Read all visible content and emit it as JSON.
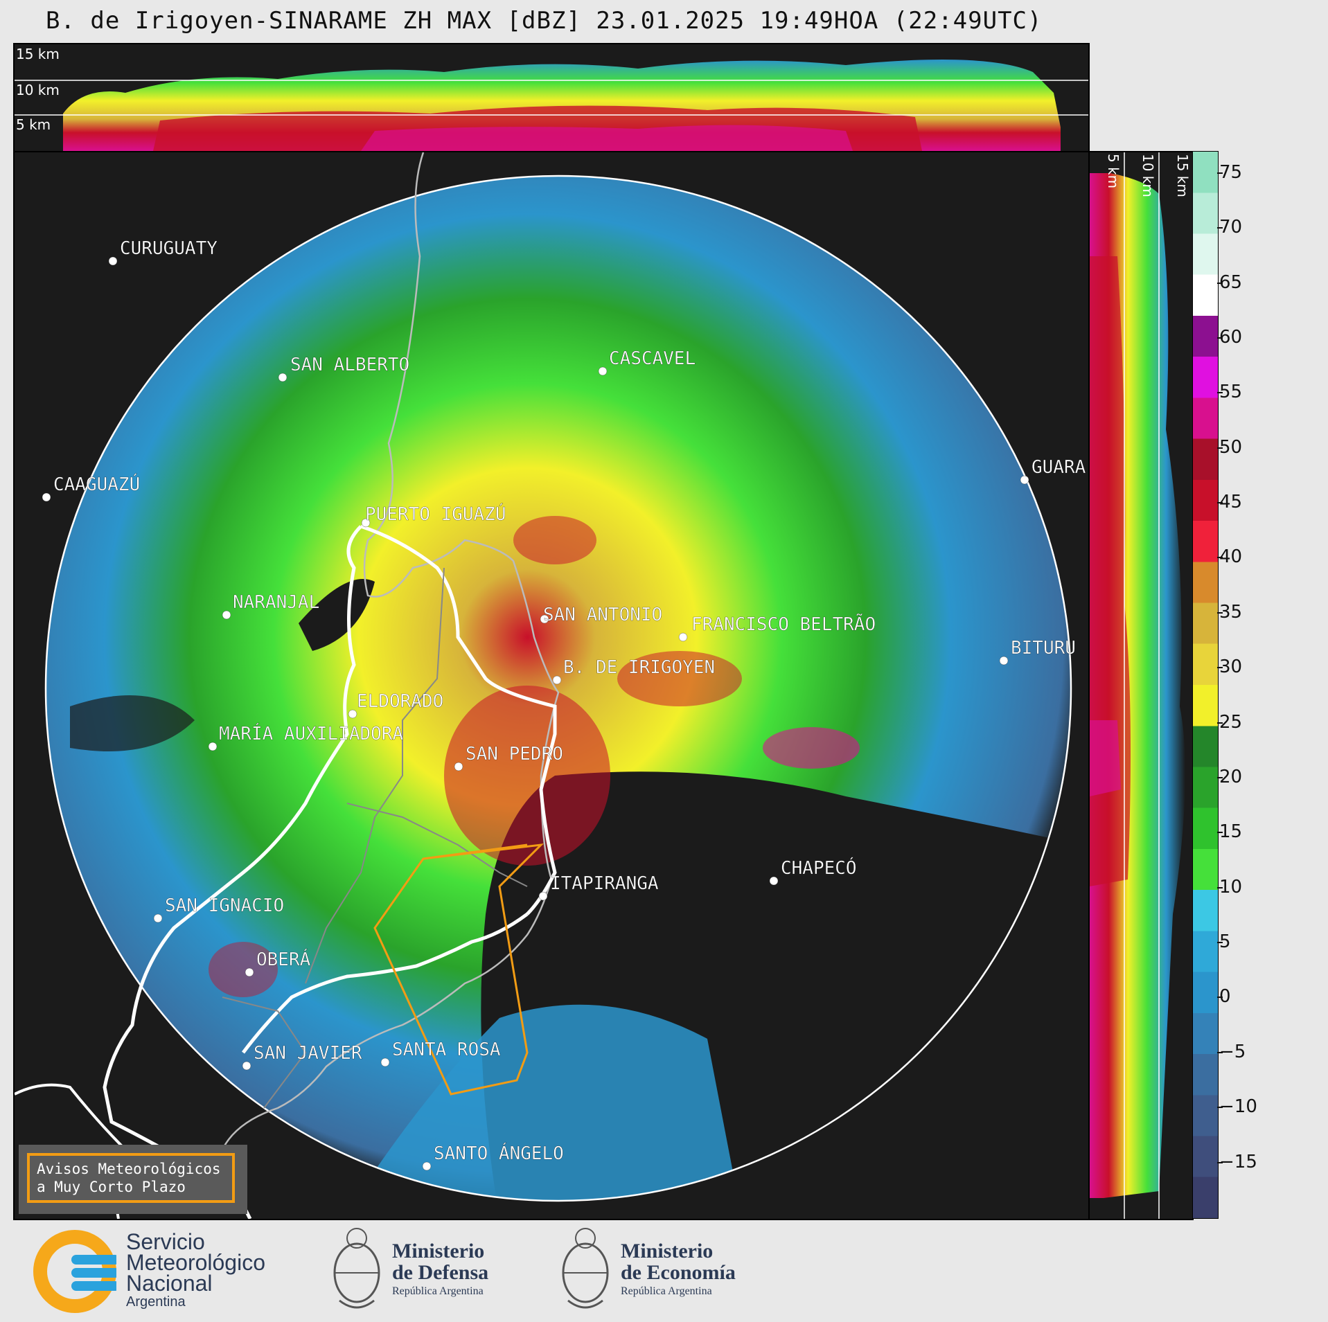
{
  "title": "B. de Irigoyen-SINARAME ZH MAX [dBZ] 23.01.2025 19:49HOA (22:49UTC)",
  "top_profile": {
    "height_labels": [
      "15 km",
      "10 km",
      "5 km"
    ]
  },
  "side_profile": {
    "height_labels": [
      "5 km",
      "10 km",
      "15 km"
    ]
  },
  "colorbar": {
    "unit": "dBZ",
    "ticks": [
      "75",
      "70",
      "65",
      "60",
      "55",
      "50",
      "45",
      "40",
      "35",
      "30",
      "25",
      "20",
      "15",
      "10",
      "5",
      "0",
      "−5",
      "−10",
      "−15"
    ],
    "range": [
      -20,
      77
    ],
    "colors": [
      "#3a3f6b",
      "#3f4e7c",
      "#3f5e8e",
      "#3b6ea0",
      "#3482b8",
      "#2b95cc",
      "#2fa9d8",
      "#3cc8e4",
      "#45e03a",
      "#2fc22d",
      "#2aa32b",
      "#24862a",
      "#f2f02a",
      "#e8d43a",
      "#d7b43a",
      "#d88a2c",
      "#f0213a",
      "#c8102a",
      "#a8102a",
      "#d8108e",
      "#e010e0",
      "#8c1090",
      "#ffffff",
      "#dff7ee",
      "#b8ecd8",
      "#90e0c0"
    ]
  },
  "locations": [
    {
      "name": "CURUGUATY"
    },
    {
      "name": "SAN ALBERTO"
    },
    {
      "name": "CASCAVEL"
    },
    {
      "name": "CAAGUAZÚ"
    },
    {
      "name": "GUARA"
    },
    {
      "name": "PUERTO IGUAZÚ"
    },
    {
      "name": "NARANJAL"
    },
    {
      "name": "SAN ANTONIO"
    },
    {
      "name": "FRANCISCO BELTRÃO"
    },
    {
      "name": "BITURU"
    },
    {
      "name": "B. DE IRIGOYEN"
    },
    {
      "name": "ELDORADO"
    },
    {
      "name": "MARÍA AUXILIADORA"
    },
    {
      "name": "SAN PEDRO"
    },
    {
      "name": "CHAPECÓ"
    },
    {
      "name": "ITAPIRANGA"
    },
    {
      "name": "SAN IGNACIO"
    },
    {
      "name": "OBERÁ"
    },
    {
      "name": "SAN JAVIER"
    },
    {
      "name": "SANTA ROSA"
    },
    {
      "name": "SANTO ÁNGELO"
    }
  ],
  "alert_box": {
    "line1": "Avisos Meteorológicos",
    "line2": "a Muy Corto Plazo"
  },
  "footer": {
    "smn_line1": "Servicio",
    "smn_line2": "Meteorológico",
    "smn_line3": "Nacional",
    "smn_line4": "Argentina",
    "defensa_line1": "Ministerio",
    "defensa_line2": "de Defensa",
    "defensa_line3": "República Argentina",
    "economia_line1": "Ministerio",
    "economia_line2": "de Economía",
    "economia_line3": "República Argentina"
  }
}
